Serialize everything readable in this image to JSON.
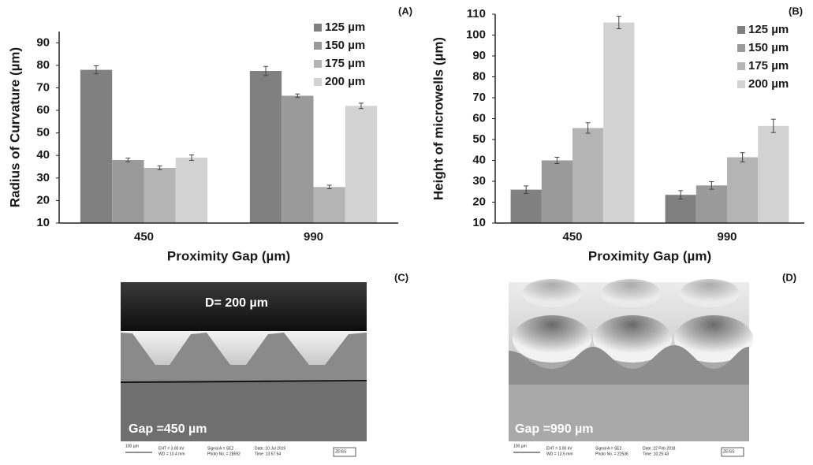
{
  "chart_data": [
    {
      "type": "bar",
      "label": "(A)",
      "y_label": "Radius of Curvature (µm)",
      "x_label": "Proximity Gap (µm)",
      "categories": [
        "450",
        "990"
      ],
      "series": [
        {
          "name": "125 µm",
          "color": "#808080",
          "values": [
            78,
            77.5
          ],
          "errors": [
            1.8,
            2
          ]
        },
        {
          "name": "150 µm",
          "color": "#9a9a9a",
          "values": [
            38,
            66.5
          ],
          "errors": [
            0.8,
            0.8
          ]
        },
        {
          "name": "175 µm",
          "color": "#b4b4b4",
          "values": [
            34.5,
            26
          ],
          "errors": [
            0.8,
            0.8
          ]
        },
        {
          "name": "200 µm",
          "color": "#d2d2d2",
          "values": [
            39,
            62
          ],
          "errors": [
            1.2,
            1.2
          ]
        }
      ],
      "ylim": [
        10,
        95
      ],
      "yticks": [
        10,
        20,
        30,
        40,
        50,
        60,
        70,
        80,
        90
      ],
      "grid": false,
      "legend": "top-right"
    },
    {
      "type": "bar",
      "label": "(B)",
      "y_label": "Height of microwells (µm)",
      "x_label": "Proximity Gap (µm)",
      "categories": [
        "450",
        "990"
      ],
      "series": [
        {
          "name": "125 µm",
          "color": "#808080",
          "values": [
            26,
            23.5
          ],
          "errors": [
            1.8,
            2
          ]
        },
        {
          "name": "150 µm",
          "color": "#9a9a9a",
          "values": [
            40,
            28
          ],
          "errors": [
            1.5,
            1.8
          ]
        },
        {
          "name": "175 µm",
          "color": "#b4b4b4",
          "values": [
            55.5,
            41.5
          ],
          "errors": [
            2.5,
            2.2
          ]
        },
        {
          "name": "200 µm",
          "color": "#d2d2d2",
          "values": [
            106,
            56.5
          ],
          "errors": [
            3,
            3.2
          ]
        }
      ],
      "ylim": [
        10,
        110
      ],
      "yticks": [
        10,
        20,
        30,
        40,
        50,
        60,
        70,
        80,
        90,
        100,
        110
      ],
      "grid": false,
      "legend": "top-right"
    }
  ],
  "images": [
    {
      "label": "(C)",
      "top_caption": "D= 200 µm",
      "caption": "Gap =450 µm",
      "info": [
        "100 µm",
        "EHT = 3.00 kV",
        "WD = 10.4 mm",
        "Signal A = SE2",
        "Photo No. = 28592",
        "Date :10 Jul 2019",
        "Time :13:57:54",
        "ZEISS"
      ]
    },
    {
      "label": "(D)",
      "caption": "Gap =990 µm",
      "info": [
        "100 µm",
        "EHT = 3.00 kV",
        "WD = 13.5 mm",
        "Signal A = SE2",
        "Photo No. = 22536",
        "Date :22 Feb 2018",
        "Time :10:25:43",
        "ZEISS"
      ]
    }
  ]
}
